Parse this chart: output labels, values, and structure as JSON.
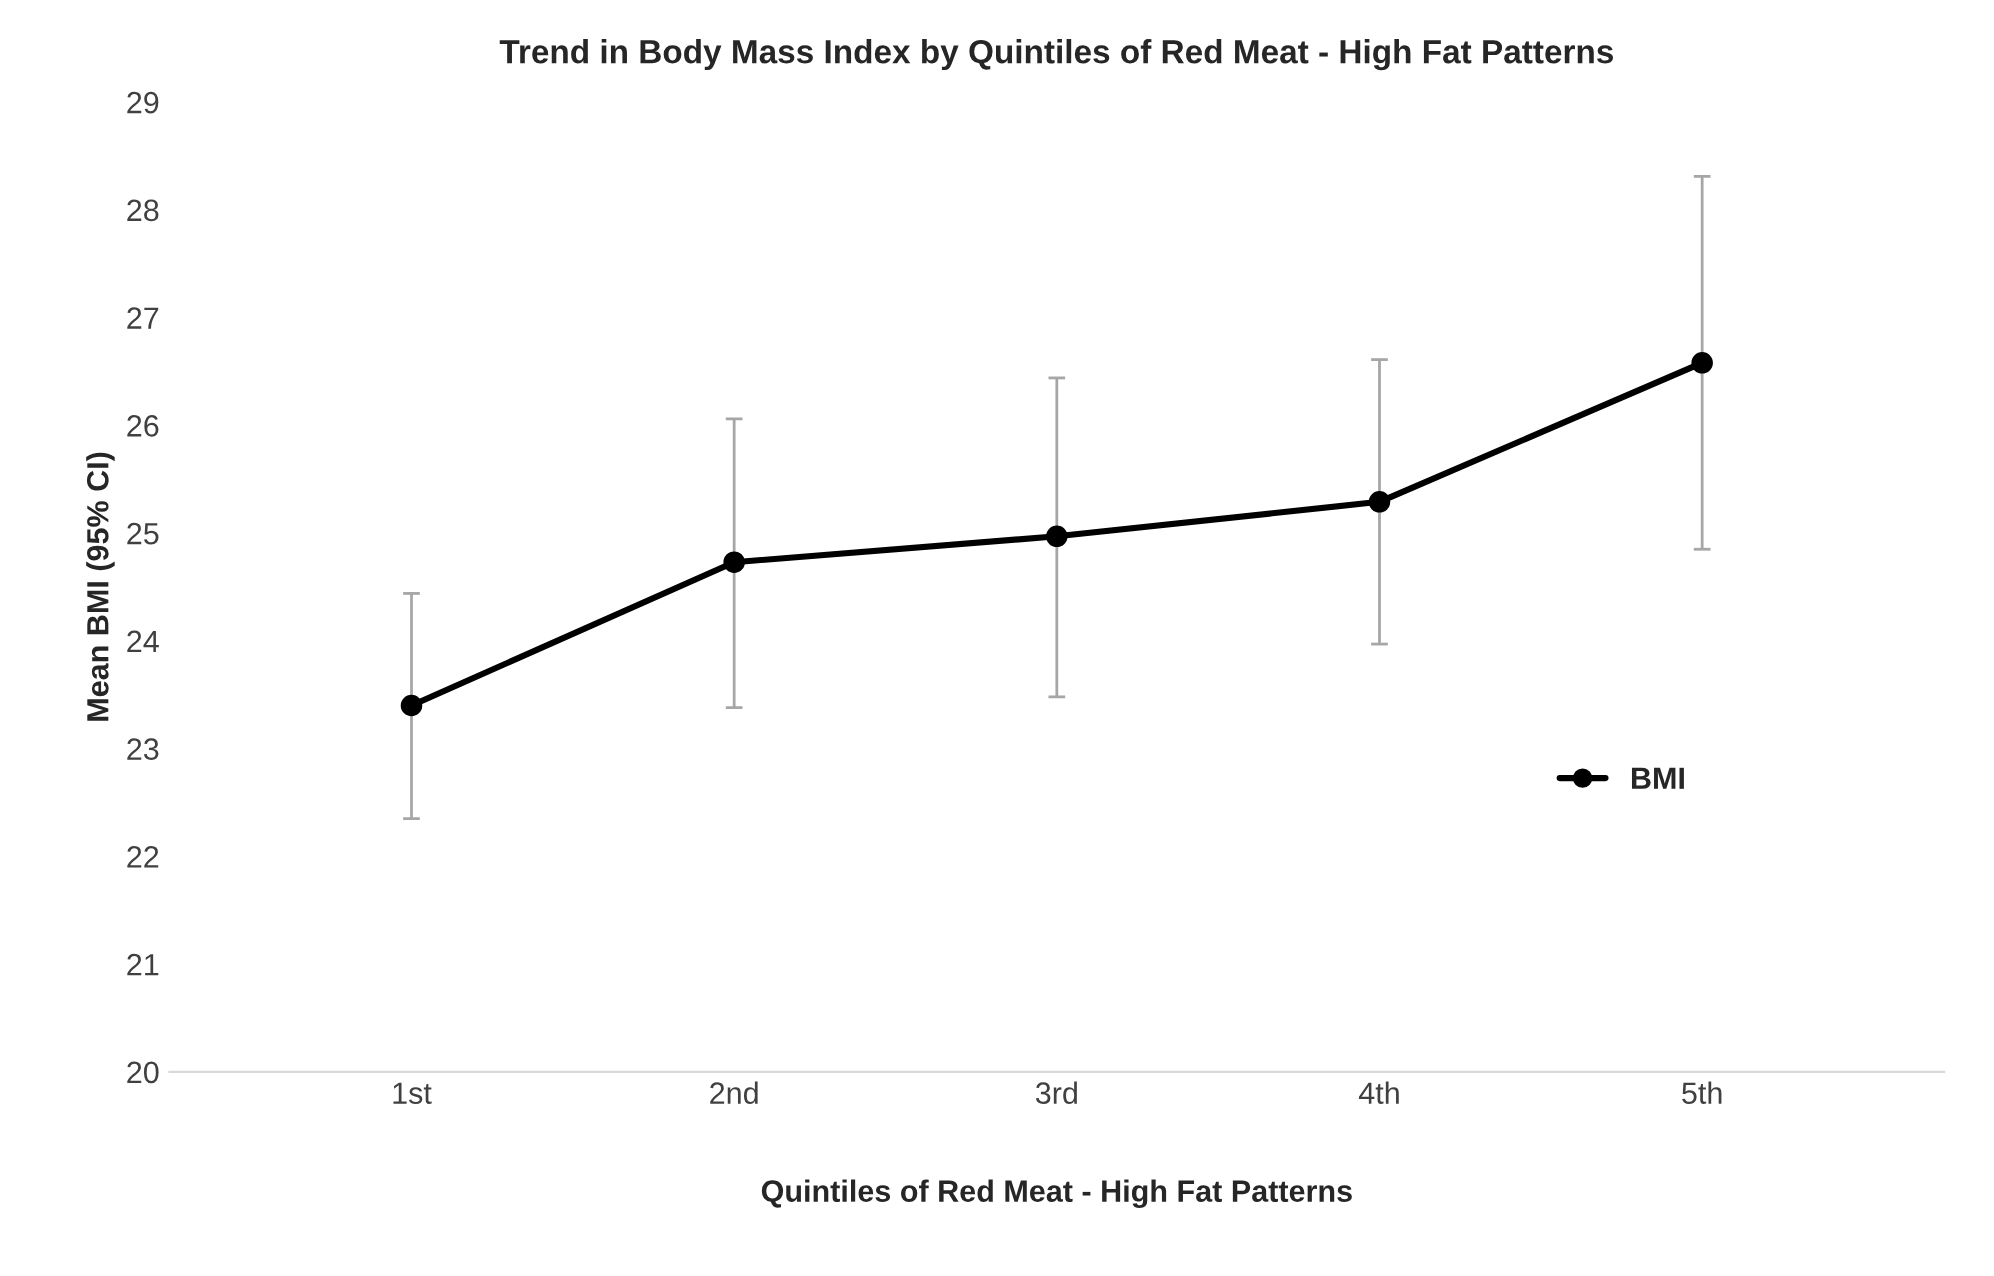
{
  "chart_data": {
    "type": "line",
    "title": "Trend in Body Mass Index by Quintiles of Red Meat - High Fat Patterns",
    "xlabel": "Quintiles of Red Meat - High Fat Patterns",
    "ylabel": "Mean BMI (95% CI)",
    "categories": [
      "1st",
      "2nd",
      "3rd",
      "4th",
      "5th"
    ],
    "series": [
      {
        "name": "BMI",
        "color": "#000000",
        "values": [
          23.4,
          24.73,
          24.97,
          25.29,
          26.58
        ],
        "errors": [
          [
            22.35,
            24.44
          ],
          [
            23.38,
            26.06
          ],
          [
            23.48,
            26.44
          ],
          [
            23.97,
            26.61
          ],
          [
            24.85,
            28.31
          ]
        ]
      }
    ],
    "ylim": [
      20,
      29
    ],
    "yticks": [
      20,
      21,
      22,
      23,
      24,
      25,
      26,
      27,
      28,
      29
    ],
    "grid": false,
    "legend": "right",
    "marker": "circle",
    "line_style": "solid"
  }
}
